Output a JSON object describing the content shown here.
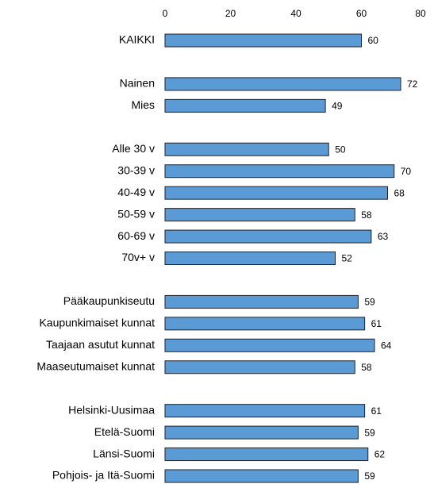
{
  "chart_data": {
    "type": "barh",
    "categories": [
      "KAIKKI",
      null,
      "Nainen",
      "Mies",
      null,
      "Alle 30 v",
      "30-39 v",
      "40-49 v",
      "50-59 v",
      "60-69 v",
      "70v+ v",
      null,
      "Pääkaupunkiseutu",
      "Kaupunkimaiset kunnat",
      "Taajaan asutut kunnat",
      "Maaseutumaiset kunnat",
      null,
      "Helsinki-Uusimaa",
      "Etelä-Suomi",
      "Länsi-Suomi",
      "Pohjois- ja Itä-Suomi"
    ],
    "values": [
      60,
      null,
      72,
      49,
      null,
      50,
      70,
      68,
      58,
      63,
      52,
      null,
      59,
      61,
      64,
      58,
      null,
      61,
      59,
      62,
      59
    ],
    "color": "#5b9bd5",
    "xlim": [
      0,
      80
    ],
    "xticks": [
      0,
      20,
      40,
      60,
      80
    ],
    "grid": false
  }
}
